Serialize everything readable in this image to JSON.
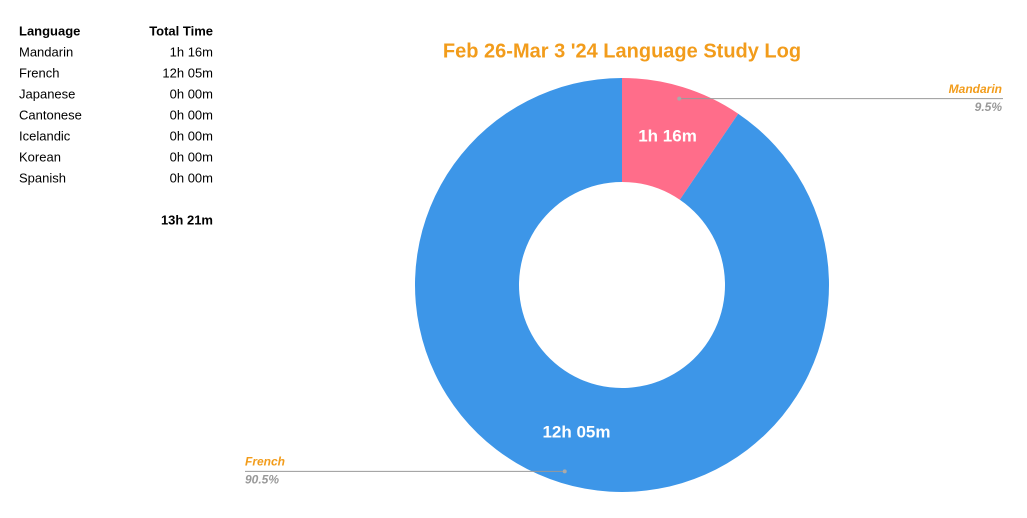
{
  "table": {
    "headers": [
      "Language",
      "Total Time"
    ],
    "rows": [
      [
        "Mandarin",
        "1h 16m"
      ],
      [
        "French",
        "12h 05m"
      ],
      [
        "Japanese",
        "0h 00m"
      ],
      [
        "Cantonese",
        "0h 00m"
      ],
      [
        "Icelandic",
        "0h 00m"
      ],
      [
        "Korean",
        "0h 00m"
      ],
      [
        "Spanish",
        "0h 00m"
      ]
    ],
    "total": "13h 21m"
  },
  "chart_data": {
    "type": "donut",
    "title": "Feb 26-Mar 3 '24 Language Study Log",
    "categories": [
      "Mandarin",
      "French"
    ],
    "values": [
      76,
      725
    ],
    "value_labels": [
      "1h 16m",
      "12h 05m"
    ],
    "percent_labels": [
      "9.5%",
      "90.5%"
    ],
    "colors": [
      "#ff6d8a",
      "#3d96e8"
    ],
    "title_color": "#f29c1b",
    "label_color": "#f29c1b"
  }
}
